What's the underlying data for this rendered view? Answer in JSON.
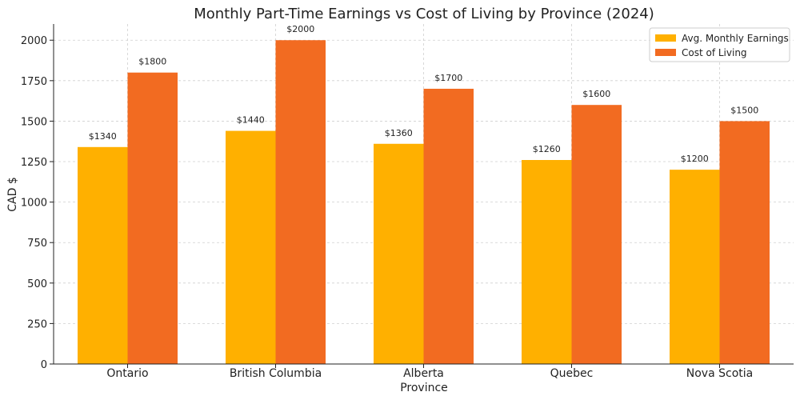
{
  "chart_data": {
    "type": "bar",
    "title": "Monthly Part-Time Earnings vs Cost of Living by Province (2024)",
    "xlabel": "Province",
    "ylabel": "CAD $",
    "categories": [
      "Ontario",
      "British Columbia",
      "Alberta",
      "Quebec",
      "Nova Scotia"
    ],
    "series": [
      {
        "name": "Avg. Monthly Earnings",
        "values": [
          1340,
          1440,
          1360,
          1260,
          1200
        ],
        "color": "#FFB000",
        "labels": [
          "$1340",
          "$1440",
          "$1360",
          "$1260",
          "$1200"
        ]
      },
      {
        "name": "Cost of Living",
        "values": [
          1800,
          2000,
          1700,
          1600,
          1500
        ],
        "color": "#F26B21",
        "labels": [
          "$1800",
          "$2000",
          "$1700",
          "$1600",
          "$1500"
        ]
      }
    ],
    "ylim": [
      0,
      2100
    ],
    "yticks": [
      "0",
      "250",
      "500",
      "750",
      "1000",
      "1250",
      "1500",
      "1750",
      "2000"
    ],
    "grid": true,
    "legend_position": "top-right"
  }
}
